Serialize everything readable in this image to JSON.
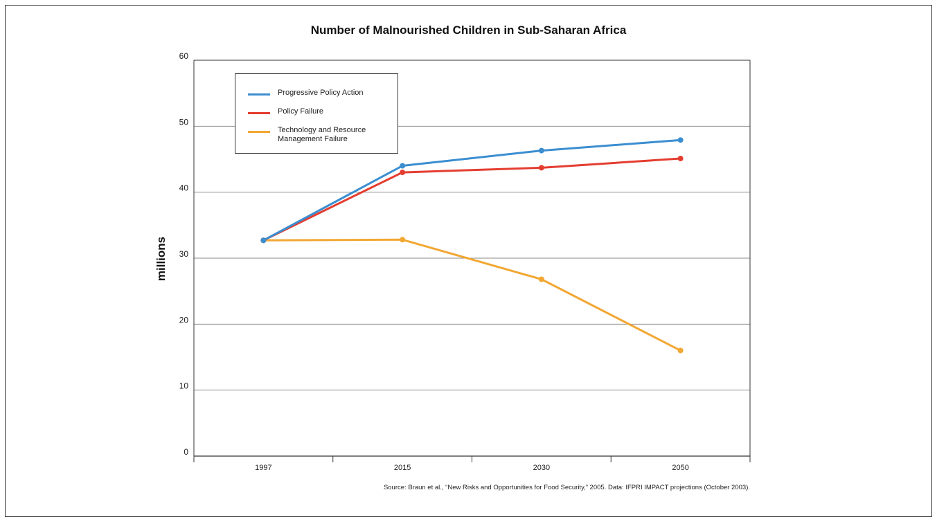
{
  "chart_data": {
    "type": "line",
    "title": "Number of Malnourished Children in Sub-Saharan Africa",
    "xlabel": "",
    "ylabel": "millions",
    "categories": [
      "1997",
      "2015",
      "2030",
      "2050"
    ],
    "ylim": [
      0,
      60
    ],
    "yticks": [
      0,
      10,
      20,
      30,
      40,
      50,
      60
    ],
    "grid": true,
    "legend_position": "top-left",
    "series": [
      {
        "name": "Progressive Policy Action",
        "color": "#3b8ed0",
        "values": [
          32.7,
          44.0,
          46.3,
          47.9
        ]
      },
      {
        "name": "Policy Failure",
        "color": "#e43d30",
        "values": [
          32.7,
          43.0,
          43.7,
          45.1
        ]
      },
      {
        "name": "Technology and Resource Management Failure",
        "color": "#f2a733",
        "values": [
          32.7,
          32.8,
          26.8,
          16.0
        ]
      }
    ]
  },
  "source_note": "Source:  Braun et al., “New Risks and Opportunities for Food Security,” 2005. Data: IFPRI IMPACT projections (October 2003)."
}
